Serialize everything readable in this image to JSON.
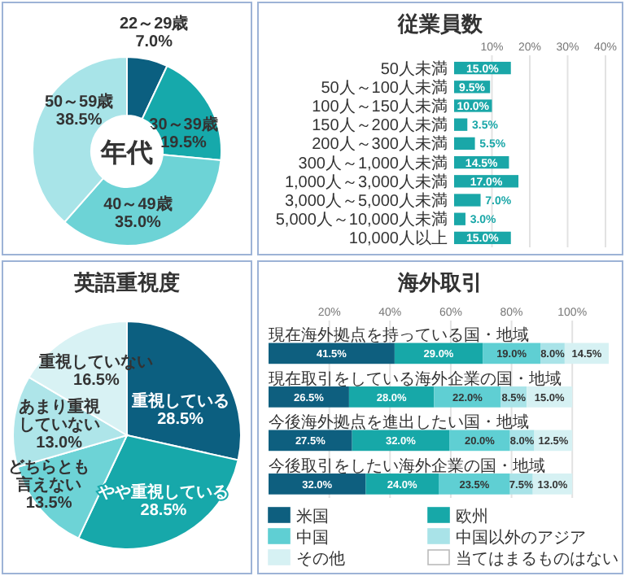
{
  "chart_data": [
    {
      "type": "donut",
      "title": "年代",
      "categories": [
        "22～29歳",
        "30～39歳",
        "40～49歳",
        "50～59歳"
      ],
      "values": [
        7.0,
        19.5,
        35.0,
        38.5
      ],
      "colors": [
        "#0b5f80",
        "#16a9ab",
        "#6dd3d6",
        "#a8e4e8"
      ],
      "value_labels": [
        "7.0%",
        "19.5%",
        "35.0%",
        "38.5%"
      ]
    },
    {
      "type": "bar",
      "orientation": "horizontal",
      "title": "従業員数",
      "categories": [
        "50人未満",
        "50人～100人未満",
        "100人～150人未満",
        "150人～200人未満",
        "200人～300人未満",
        "300人～1,000人未満",
        "1,000人～3,000人未満",
        "3,000人～5,000人未満",
        "5,000人～10,000人未満",
        "10,000人以上"
      ],
      "values": [
        15.0,
        9.5,
        10.0,
        3.5,
        5.5,
        14.5,
        17.0,
        7.0,
        3.0,
        15.0
      ],
      "color": "#1aa7a8",
      "value_labels": [
        "15.0%",
        "9.5%",
        "10.0%",
        "3.5%",
        "5.5%",
        "14.5%",
        "17.0%",
        "7.0%",
        "3.0%",
        "15.0%"
      ],
      "xlim": [
        0,
        40
      ],
      "xticks": [
        {
          "value": 10,
          "label": "10%"
        },
        {
          "value": 20,
          "label": "20%"
        },
        {
          "value": 30,
          "label": "30%"
        },
        {
          "value": 40,
          "label": "40%"
        }
      ],
      "grid": "x"
    },
    {
      "type": "pie",
      "title": "英語重視度",
      "categories": [
        "重視している",
        "やや重視している",
        "どちらとも言えない",
        "あまり重視していない",
        "重視していない"
      ],
      "values": [
        28.5,
        28.5,
        13.5,
        13.0,
        16.5
      ],
      "colors": [
        "#0c5f80",
        "#17a8aa",
        "#6dd3d6",
        "#aee5e9",
        "#d8f2f4"
      ],
      "value_labels": [
        "28.5%",
        "28.5%",
        "13.5%",
        "13.0%",
        "16.5%"
      ]
    },
    {
      "type": "bar",
      "orientation": "horizontal",
      "stacked": true,
      "title": "海外取引",
      "categories": [
        "現在海外拠点を持っている国・地域",
        "現在取引をしている海外企業の国・地域",
        "今後海外拠点を進出したい国・地域",
        "今後取引をしたい海外企業の国・地域"
      ],
      "series": [
        {
          "name": "米国",
          "color": "#0e5f7f",
          "values": [
            41.5,
            26.5,
            27.5,
            32.0
          ],
          "value_labels": [
            "41.5%",
            "26.5%",
            "27.5%",
            "32.0%"
          ]
        },
        {
          "name": "欧州",
          "color": "#17a8a8",
          "values": [
            29.0,
            28.0,
            32.0,
            24.0
          ],
          "value_labels": [
            "29.0%",
            "28.0%",
            "32.0%",
            "24.0%"
          ]
        },
        {
          "name": "中国",
          "color": "#5fcfd3",
          "values": [
            19.0,
            22.0,
            20.0,
            23.5
          ],
          "value_labels": [
            "19.0%",
            "22.0%",
            "20.0%",
            "23.5%"
          ]
        },
        {
          "name": "中国以外のアジア",
          "color": "#a9e3e8",
          "values": [
            8.0,
            8.5,
            8.0,
            7.5
          ],
          "value_labels": [
            "8.0%",
            "8.5%",
            "8.0%",
            "7.5%"
          ]
        },
        {
          "name": "その他",
          "color": "#d6f1f3",
          "values": [
            14.5,
            15.0,
            12.5,
            13.0
          ],
          "value_labels": [
            "14.5%",
            "15.0%",
            "12.5%",
            "13.0%"
          ]
        },
        {
          "name": "当てはまるものはない",
          "color": "#ffffff",
          "values": [
            null,
            null,
            null,
            null
          ]
        }
      ],
      "xlim": [
        0,
        112
      ],
      "xticks": [
        {
          "value": 20,
          "label": "20%"
        },
        {
          "value": 40,
          "label": "40%"
        },
        {
          "value": 60,
          "label": "60%"
        },
        {
          "value": 80,
          "label": "80%"
        },
        {
          "value": 100,
          "label": "100%"
        }
      ],
      "grid": "x",
      "legend": "bottom"
    }
  ]
}
